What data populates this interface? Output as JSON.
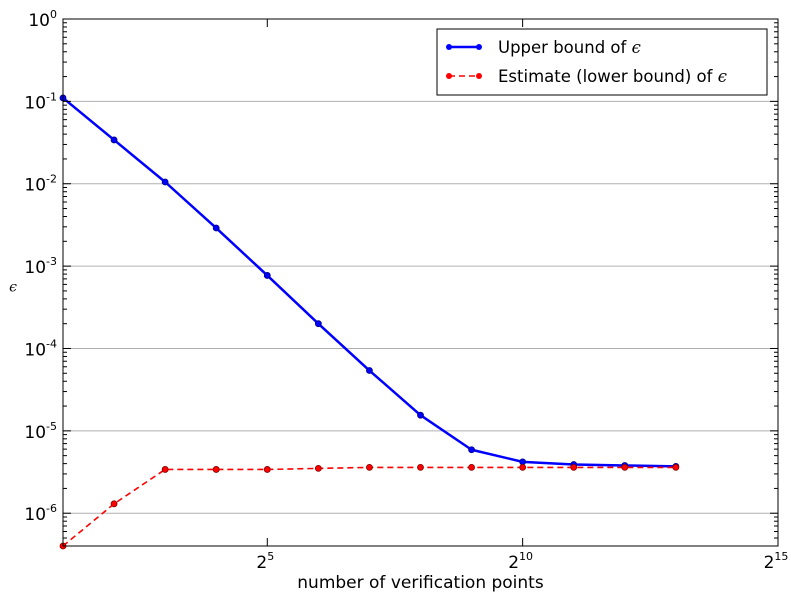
{
  "chart_data": {
    "type": "line",
    "xlabel": "number of verification points",
    "ylabel": "ϵ",
    "x_scale": "log2",
    "y_scale": "log10",
    "xlim": [
      2,
      32768
    ],
    "ylim": [
      4e-07,
      1
    ],
    "grid": "horizontal major",
    "legend_position": "top-right",
    "x_ticks": [
      {
        "value": 32,
        "base": "2",
        "exp": "5"
      },
      {
        "value": 1024,
        "base": "2",
        "exp": "10"
      },
      {
        "value": 32768,
        "base": "2",
        "exp": "15"
      }
    ],
    "y_ticks": [
      {
        "value": 1,
        "base": "10",
        "exp": "0"
      },
      {
        "value": 0.1,
        "base": "10",
        "exp": "-1"
      },
      {
        "value": 0.01,
        "base": "10",
        "exp": "-2"
      },
      {
        "value": 0.001,
        "base": "10",
        "exp": "-3"
      },
      {
        "value": 0.0001,
        "base": "10",
        "exp": "-4"
      },
      {
        "value": 1e-05,
        "base": "10",
        "exp": "-5"
      },
      {
        "value": 1e-06,
        "base": "10",
        "exp": "-6"
      }
    ],
    "x": [
      2,
      4,
      8,
      16,
      32,
      64,
      128,
      256,
      512,
      1024,
      2048,
      4096,
      8192
    ],
    "series": [
      {
        "name": "Upper bound of ",
        "name_symbol": "ϵ",
        "color": "#0000ff",
        "line_style": "solid",
        "values": [
          0.11,
          0.034,
          0.0105,
          0.0029,
          0.00077,
          0.0002,
          5.4e-05,
          1.55e-05,
          5.9e-06,
          4.2e-06,
          3.9e-06,
          3.8e-06,
          3.7e-06
        ]
      },
      {
        "name": "Estimate (lower bound) of ",
        "name_symbol": "ϵ",
        "color": "#ff0000",
        "line_style": "dashed",
        "values": [
          4e-07,
          1.3e-06,
          3.4e-06,
          3.4e-06,
          3.4e-06,
          3.5e-06,
          3.6e-06,
          3.6e-06,
          3.6e-06,
          3.6e-06,
          3.6e-06,
          3.6e-06,
          3.6e-06
        ]
      }
    ]
  }
}
